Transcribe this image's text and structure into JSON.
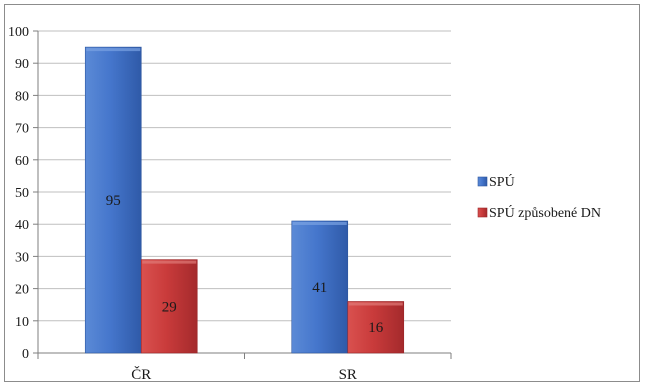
{
  "chart_data": {
    "type": "bar",
    "categories": [
      "ČR",
      "SR"
    ],
    "series": [
      {
        "name": "SPÚ",
        "values": [
          95,
          41
        ],
        "color": "#3f6fc4"
      },
      {
        "name": "SPÚ způsobené DN",
        "values": [
          29,
          16
        ],
        "color": "#c8373b"
      }
    ],
    "yticks": [
      "0",
      "10",
      "20",
      "30",
      "40",
      "50",
      "60",
      "70",
      "80",
      "90",
      "100"
    ],
    "ylim": [
      0,
      100
    ],
    "grid": true,
    "legend": "right",
    "data_labels": true
  }
}
